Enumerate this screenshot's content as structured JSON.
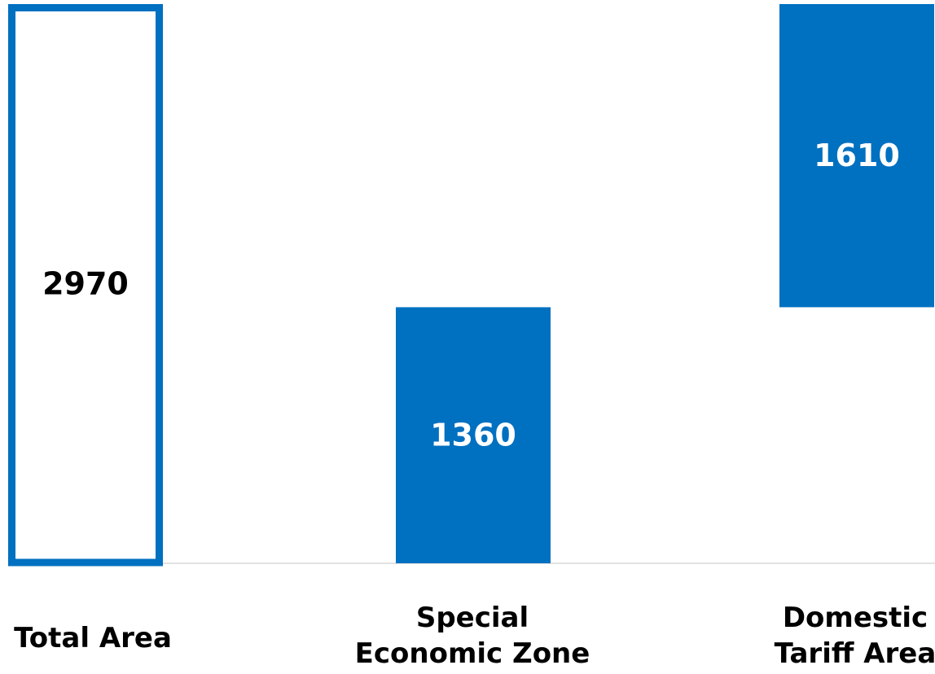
{
  "chart_data": {
    "type": "bar",
    "subtype": "waterfall",
    "categories": [
      "Total Area",
      "Special Economic Zone",
      "Domestic Tariff Area"
    ],
    "category_label_lines": [
      [
        "Total Area"
      ],
      [
        "Special",
        "Economic Zone"
      ],
      [
        "Domestic",
        "Tariff Area"
      ]
    ],
    "values": [
      2970,
      1360,
      1610
    ],
    "value_labels": [
      "2970",
      "1360",
      "1610"
    ],
    "bar_styles": [
      "outline",
      "filled",
      "filled"
    ],
    "colors": {
      "bar": "#0070C0",
      "axis": "#D9D9D9",
      "label_on_fill": "#ffffff",
      "label_on_outline": "#000000",
      "category_text": "#000000"
    },
    "ylim": [
      0,
      2970
    ],
    "grid": false,
    "legend": "none",
    "title": "",
    "xlabel": "",
    "ylabel": ""
  }
}
